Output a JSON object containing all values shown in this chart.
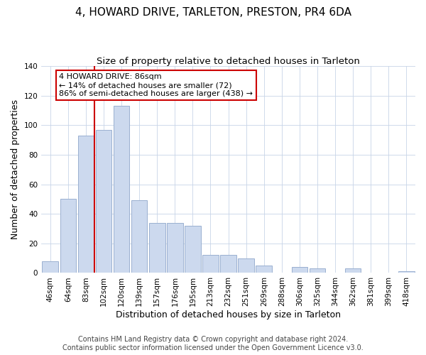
{
  "title": "4, HOWARD DRIVE, TARLETON, PRESTON, PR4 6DA",
  "subtitle": "Size of property relative to detached houses in Tarleton",
  "xlabel": "Distribution of detached houses by size in Tarleton",
  "ylabel": "Number of detached properties",
  "bar_labels": [
    "46sqm",
    "64sqm",
    "83sqm",
    "102sqm",
    "120sqm",
    "139sqm",
    "157sqm",
    "176sqm",
    "195sqm",
    "213sqm",
    "232sqm",
    "251sqm",
    "269sqm",
    "288sqm",
    "306sqm",
    "325sqm",
    "344sqm",
    "362sqm",
    "381sqm",
    "399sqm",
    "418sqm"
  ],
  "bar_values": [
    8,
    50,
    93,
    97,
    113,
    49,
    34,
    34,
    32,
    12,
    12,
    10,
    5,
    0,
    4,
    3,
    0,
    3,
    0,
    0,
    1
  ],
  "bar_color": "#ccd9ee",
  "bar_edge_color": "#9ab0d0",
  "ylim": [
    0,
    140
  ],
  "yticks": [
    0,
    20,
    40,
    60,
    80,
    100,
    120,
    140
  ],
  "vline_x_index": 2,
  "vline_color": "#cc0000",
  "annotation_text": "4 HOWARD DRIVE: 86sqm\n← 14% of detached houses are smaller (72)\n86% of semi-detached houses are larger (438) →",
  "annotation_box_color": "#ffffff",
  "annotation_box_edge": "#cc0000",
  "footer_line1": "Contains HM Land Registry data © Crown copyright and database right 2024.",
  "footer_line2": "Contains public sector information licensed under the Open Government Licence v3.0.",
  "title_fontsize": 11,
  "subtitle_fontsize": 9.5,
  "xlabel_fontsize": 9,
  "ylabel_fontsize": 9,
  "footer_fontsize": 7,
  "tick_fontsize": 7.5
}
